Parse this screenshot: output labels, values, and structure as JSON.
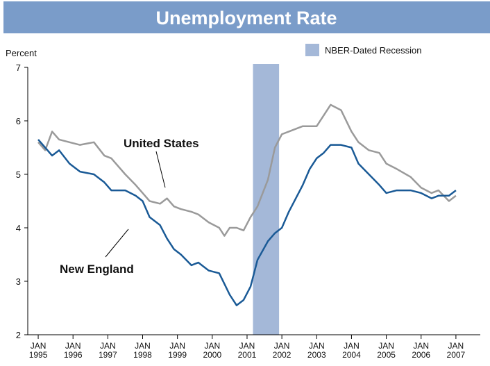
{
  "chart_data": {
    "type": "line",
    "title": "Unemployment Rate",
    "y_label": "Percent",
    "x": [
      1995.0,
      1995.2,
      1995.4,
      1995.6,
      1995.9,
      1996.2,
      1996.6,
      1996.9,
      1997.1,
      1997.5,
      1997.8,
      1998.0,
      1998.2,
      1998.5,
      1998.7,
      1998.9,
      1999.1,
      1999.4,
      1999.6,
      1999.9,
      2000.2,
      2000.35,
      2000.5,
      2000.7,
      2000.9,
      2001.1,
      2001.3,
      2001.6,
      2001.8,
      2002.0,
      2002.2,
      2002.6,
      2002.8,
      2003.0,
      2003.2,
      2003.4,
      2003.7,
      2004.0,
      2004.2,
      2004.5,
      2004.8,
      2005.0,
      2005.3,
      2005.7,
      2006.0,
      2006.3,
      2006.5,
      2006.8,
      2007.0
    ],
    "series": [
      {
        "name": "New England",
        "color": "#1a5a96",
        "values": [
          5.65,
          5.5,
          5.35,
          5.45,
          5.2,
          5.05,
          5.0,
          4.85,
          4.7,
          4.7,
          4.6,
          4.5,
          4.2,
          4.05,
          3.8,
          3.6,
          3.5,
          3.3,
          3.35,
          3.2,
          3.15,
          2.95,
          2.75,
          2.55,
          2.65,
          2.9,
          3.4,
          3.75,
          3.9,
          4.0,
          4.3,
          4.8,
          5.1,
          5.3,
          5.4,
          5.55,
          5.55,
          5.5,
          5.2,
          5.0,
          4.8,
          4.65,
          4.7,
          4.7,
          4.65,
          4.55,
          4.6,
          4.6,
          4.7
        ]
      },
      {
        "name": "United States",
        "color": "#9a9a9a",
        "values": [
          5.6,
          5.45,
          5.8,
          5.65,
          5.6,
          5.55,
          5.6,
          5.35,
          5.3,
          5.0,
          4.8,
          4.65,
          4.5,
          4.45,
          4.55,
          4.4,
          4.35,
          4.3,
          4.25,
          4.1,
          4.0,
          3.85,
          4.0,
          4.0,
          3.95,
          4.2,
          4.4,
          4.9,
          5.5,
          5.75,
          5.8,
          5.9,
          5.9,
          5.9,
          6.1,
          6.3,
          6.2,
          5.8,
          5.6,
          5.45,
          5.4,
          5.2,
          5.1,
          4.95,
          4.75,
          4.65,
          4.7,
          4.5,
          4.6
        ]
      }
    ],
    "recession": [
      2001.17,
      2001.92
    ],
    "legend": "NBER-Dated Recession",
    "xlim": [
      1994.7,
      2007.7
    ],
    "xticks": [
      {
        "value": 1995,
        "label": "JAN 1995"
      },
      {
        "value": 1996,
        "label": "JAN 1996"
      },
      {
        "value": 1997,
        "label": "JAN 1997"
      },
      {
        "value": 1998,
        "label": "JAN 1998"
      },
      {
        "value": 1999,
        "label": "JAN 1999"
      },
      {
        "value": 2000,
        "label": "JAN 2000"
      },
      {
        "value": 2001,
        "label": "JAN 2001"
      },
      {
        "value": 2002,
        "label": "JAN 2002"
      },
      {
        "value": 2003,
        "label": "JAN 2003"
      },
      {
        "value": 2004,
        "label": "JAN 2004"
      },
      {
        "value": 2005,
        "label": "JAN 2005"
      },
      {
        "value": 2006,
        "label": "JAN 2006"
      },
      {
        "value": 2007,
        "label": "JAN 2007"
      }
    ],
    "ylim": [
      2,
      7
    ],
    "yticks": [
      2,
      3,
      4,
      5,
      6,
      7
    ]
  }
}
